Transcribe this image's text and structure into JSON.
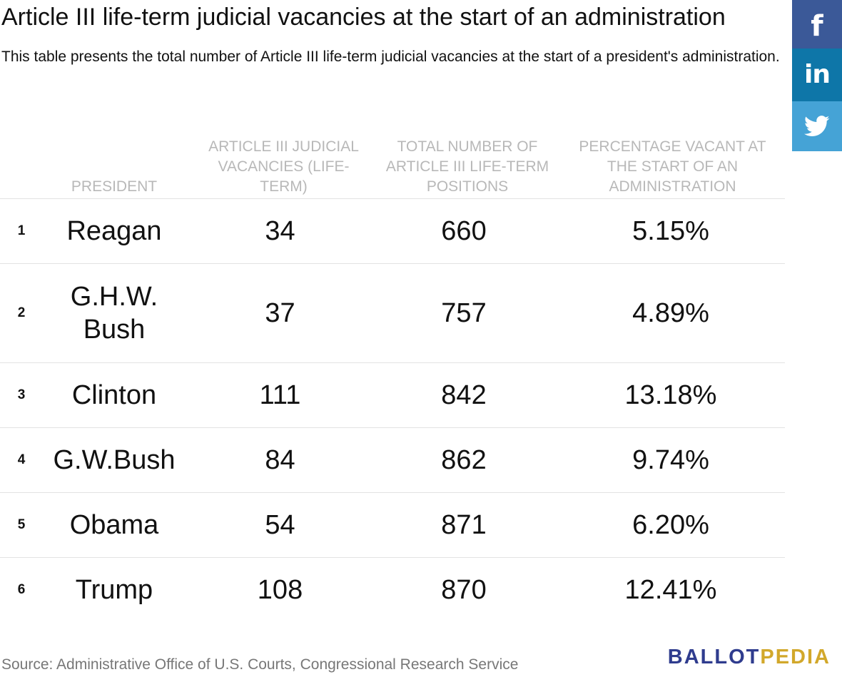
{
  "title": "Article III life-term judicial vacancies at the start of an administration",
  "subtitle": "This table presents the total number of Article III life-term judicial vacancies at the start of a president's administration.",
  "share": {
    "facebook_icon": "facebook-icon",
    "linkedin_icon": "linkedin-icon",
    "twitter_icon": "twitter-icon",
    "colors": {
      "facebook": "#3b5998",
      "linkedin": "#0e76a8",
      "twitter": "#45a3d6"
    }
  },
  "chart_data": {
    "type": "table",
    "columns": [
      "PRESIDENT",
      "ARTICLE III JUDICIAL VACANCIES (LIFE-TERM)",
      "TOTAL NUMBER OF ARTICLE III LIFE-TERM POSITIONS",
      "PERCENTAGE VACANT AT THE START OF AN ADMINISTRATION"
    ],
    "rows": [
      {
        "rank": "1",
        "president": "Reagan",
        "vacancies": "34",
        "total": "660",
        "percent": "5.15%"
      },
      {
        "rank": "2",
        "president": "G.H.W. Bush",
        "vacancies": "37",
        "total": "757",
        "percent": "4.89%"
      },
      {
        "rank": "3",
        "president": "Clinton",
        "vacancies": "111",
        "total": "842",
        "percent": "13.18%"
      },
      {
        "rank": "4",
        "president": "G.W.Bush",
        "vacancies": "84",
        "total": "862",
        "percent": "9.74%"
      },
      {
        "rank": "5",
        "president": "Obama",
        "vacancies": "54",
        "total": "871",
        "percent": "6.20%"
      },
      {
        "rank": "6",
        "president": "Trump",
        "vacancies": "108",
        "total": "870",
        "percent": "12.41%"
      }
    ]
  },
  "source": "Source: Administrative Office of U.S. Courts, Congressional Research Service",
  "logo": {
    "part1": "BALLOT",
    "part2": "PEDIA",
    "colors": {
      "part1": "#2f3c8e",
      "part2": "#d2a82b"
    }
  }
}
